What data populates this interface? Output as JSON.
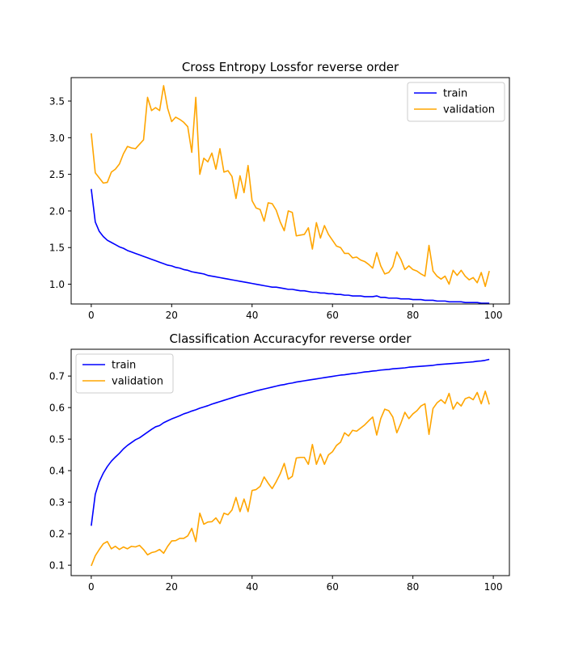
{
  "chart_data": [
    {
      "type": "line",
      "title": "Cross Entropy Lossfor reverse order",
      "xlabel": "",
      "ylabel": "",
      "xlim": [
        -5,
        104
      ],
      "ylim": [
        0.73,
        3.82
      ],
      "xticks": [
        0,
        20,
        40,
        60,
        80,
        100
      ],
      "yticks": [
        1.0,
        1.5,
        2.0,
        2.5,
        3.0,
        3.5
      ],
      "ytick_decimals": 1,
      "grid": false,
      "legend_position": "upper right",
      "x": [
        0,
        1,
        2,
        3,
        4,
        5,
        6,
        7,
        8,
        9,
        10,
        11,
        12,
        13,
        14,
        15,
        16,
        17,
        18,
        19,
        20,
        21,
        22,
        23,
        24,
        25,
        26,
        27,
        28,
        29,
        30,
        31,
        32,
        33,
        34,
        35,
        36,
        37,
        38,
        39,
        40,
        41,
        42,
        43,
        44,
        45,
        46,
        47,
        48,
        49,
        50,
        51,
        52,
        53,
        54,
        55,
        56,
        57,
        58,
        59,
        60,
        61,
        62,
        63,
        64,
        65,
        66,
        67,
        68,
        69,
        70,
        71,
        72,
        73,
        74,
        75,
        76,
        77,
        78,
        79,
        80,
        81,
        82,
        83,
        84,
        85,
        86,
        87,
        88,
        89,
        90,
        91,
        92,
        93,
        94,
        95,
        96,
        97,
        98,
        99
      ],
      "series": [
        {
          "name": "train",
          "color": "#0000ff",
          "values": [
            2.3,
            1.85,
            1.72,
            1.65,
            1.6,
            1.57,
            1.54,
            1.51,
            1.49,
            1.46,
            1.44,
            1.42,
            1.4,
            1.38,
            1.36,
            1.34,
            1.32,
            1.3,
            1.28,
            1.26,
            1.25,
            1.23,
            1.22,
            1.2,
            1.19,
            1.17,
            1.16,
            1.15,
            1.14,
            1.12,
            1.11,
            1.1,
            1.09,
            1.08,
            1.07,
            1.06,
            1.05,
            1.04,
            1.03,
            1.02,
            1.01,
            1.0,
            0.99,
            0.98,
            0.97,
            0.96,
            0.96,
            0.95,
            0.94,
            0.93,
            0.93,
            0.92,
            0.91,
            0.91,
            0.9,
            0.89,
            0.89,
            0.88,
            0.88,
            0.87,
            0.87,
            0.86,
            0.86,
            0.85,
            0.85,
            0.84,
            0.84,
            0.84,
            0.83,
            0.83,
            0.83,
            0.84,
            0.82,
            0.82,
            0.81,
            0.81,
            0.81,
            0.8,
            0.8,
            0.8,
            0.79,
            0.79,
            0.79,
            0.78,
            0.78,
            0.78,
            0.77,
            0.77,
            0.77,
            0.76,
            0.76,
            0.76,
            0.76,
            0.75,
            0.75,
            0.75,
            0.75,
            0.74,
            0.74,
            0.74
          ]
        },
        {
          "name": "validation",
          "color": "#ffa500",
          "values": [
            3.06,
            2.52,
            2.45,
            2.38,
            2.39,
            2.53,
            2.57,
            2.64,
            2.78,
            2.88,
            2.86,
            2.85,
            2.91,
            2.97,
            3.55,
            3.37,
            3.41,
            3.37,
            3.71,
            3.4,
            3.22,
            3.28,
            3.25,
            3.21,
            3.15,
            2.8,
            3.55,
            2.5,
            2.72,
            2.67,
            2.79,
            2.57,
            2.85,
            2.53,
            2.55,
            2.47,
            2.17,
            2.48,
            2.25,
            2.62,
            2.14,
            2.04,
            2.02,
            1.86,
            2.11,
            2.1,
            2.01,
            1.85,
            1.73,
            2.0,
            1.98,
            1.66,
            1.67,
            1.68,
            1.77,
            1.48,
            1.84,
            1.63,
            1.8,
            1.68,
            1.6,
            1.52,
            1.5,
            1.42,
            1.42,
            1.36,
            1.37,
            1.33,
            1.31,
            1.27,
            1.22,
            1.43,
            1.25,
            1.14,
            1.16,
            1.24,
            1.44,
            1.34,
            1.2,
            1.25,
            1.2,
            1.18,
            1.14,
            1.11,
            1.53,
            1.18,
            1.11,
            1.07,
            1.11,
            1.0,
            1.19,
            1.12,
            1.19,
            1.11,
            1.06,
            1.09,
            1.02,
            1.16,
            0.97,
            1.18
          ]
        }
      ]
    },
    {
      "type": "line",
      "title": "Classification Accuracyfor reverse order",
      "xlabel": "",
      "ylabel": "",
      "xlim": [
        -5,
        104
      ],
      "ylim": [
        0.067,
        0.785
      ],
      "xticks": [
        0,
        20,
        40,
        60,
        80,
        100
      ],
      "yticks": [
        0.1,
        0.2,
        0.3,
        0.4,
        0.5,
        0.6,
        0.7
      ],
      "ytick_decimals": 1,
      "grid": false,
      "legend_position": "upper left",
      "x": [
        0,
        1,
        2,
        3,
        4,
        5,
        6,
        7,
        8,
        9,
        10,
        11,
        12,
        13,
        14,
        15,
        16,
        17,
        18,
        19,
        20,
        21,
        22,
        23,
        24,
        25,
        26,
        27,
        28,
        29,
        30,
        31,
        32,
        33,
        34,
        35,
        36,
        37,
        38,
        39,
        40,
        41,
        42,
        43,
        44,
        45,
        46,
        47,
        48,
        49,
        50,
        51,
        52,
        53,
        54,
        55,
        56,
        57,
        58,
        59,
        60,
        61,
        62,
        63,
        64,
        65,
        66,
        67,
        68,
        69,
        70,
        71,
        72,
        73,
        74,
        75,
        76,
        77,
        78,
        79,
        80,
        81,
        82,
        83,
        84,
        85,
        86,
        87,
        88,
        89,
        90,
        91,
        92,
        93,
        94,
        95,
        96,
        97,
        98,
        99
      ],
      "series": [
        {
          "name": "train",
          "color": "#0000ff",
          "values": [
            0.225,
            0.325,
            0.365,
            0.392,
            0.413,
            0.43,
            0.443,
            0.455,
            0.469,
            0.48,
            0.489,
            0.498,
            0.504,
            0.513,
            0.522,
            0.531,
            0.539,
            0.543,
            0.552,
            0.558,
            0.564,
            0.569,
            0.574,
            0.58,
            0.584,
            0.589,
            0.593,
            0.598,
            0.602,
            0.606,
            0.611,
            0.615,
            0.619,
            0.623,
            0.627,
            0.631,
            0.635,
            0.639,
            0.642,
            0.646,
            0.649,
            0.653,
            0.656,
            0.659,
            0.662,
            0.665,
            0.668,
            0.671,
            0.673,
            0.676,
            0.678,
            0.681,
            0.683,
            0.685,
            0.687,
            0.689,
            0.691,
            0.693,
            0.695,
            0.697,
            0.699,
            0.701,
            0.703,
            0.704,
            0.706,
            0.708,
            0.709,
            0.711,
            0.713,
            0.714,
            0.716,
            0.717,
            0.719,
            0.72,
            0.721,
            0.723,
            0.724,
            0.725,
            0.726,
            0.728,
            0.729,
            0.73,
            0.731,
            0.732,
            0.733,
            0.734,
            0.736,
            0.737,
            0.738,
            0.739,
            0.74,
            0.741,
            0.742,
            0.743,
            0.744,
            0.745,
            0.747,
            0.748,
            0.75,
            0.753
          ]
        },
        {
          "name": "validation",
          "color": "#ffa500",
          "values": [
            0.098,
            0.13,
            0.15,
            0.168,
            0.175,
            0.152,
            0.16,
            0.15,
            0.158,
            0.152,
            0.16,
            0.158,
            0.163,
            0.15,
            0.133,
            0.14,
            0.143,
            0.15,
            0.138,
            0.16,
            0.177,
            0.178,
            0.185,
            0.185,
            0.193,
            0.217,
            0.175,
            0.265,
            0.23,
            0.237,
            0.238,
            0.25,
            0.232,
            0.265,
            0.26,
            0.275,
            0.315,
            0.27,
            0.31,
            0.27,
            0.337,
            0.34,
            0.35,
            0.38,
            0.36,
            0.343,
            0.365,
            0.39,
            0.423,
            0.373,
            0.382,
            0.44,
            0.442,
            0.442,
            0.42,
            0.483,
            0.42,
            0.453,
            0.42,
            0.45,
            0.46,
            0.48,
            0.49,
            0.52,
            0.51,
            0.528,
            0.525,
            0.535,
            0.545,
            0.558,
            0.57,
            0.513,
            0.565,
            0.595,
            0.59,
            0.57,
            0.52,
            0.55,
            0.585,
            0.565,
            0.58,
            0.59,
            0.605,
            0.612,
            0.515,
            0.597,
            0.615,
            0.625,
            0.613,
            0.645,
            0.595,
            0.617,
            0.605,
            0.628,
            0.633,
            0.625,
            0.648,
            0.612,
            0.652,
            0.61
          ]
        }
      ]
    }
  ]
}
